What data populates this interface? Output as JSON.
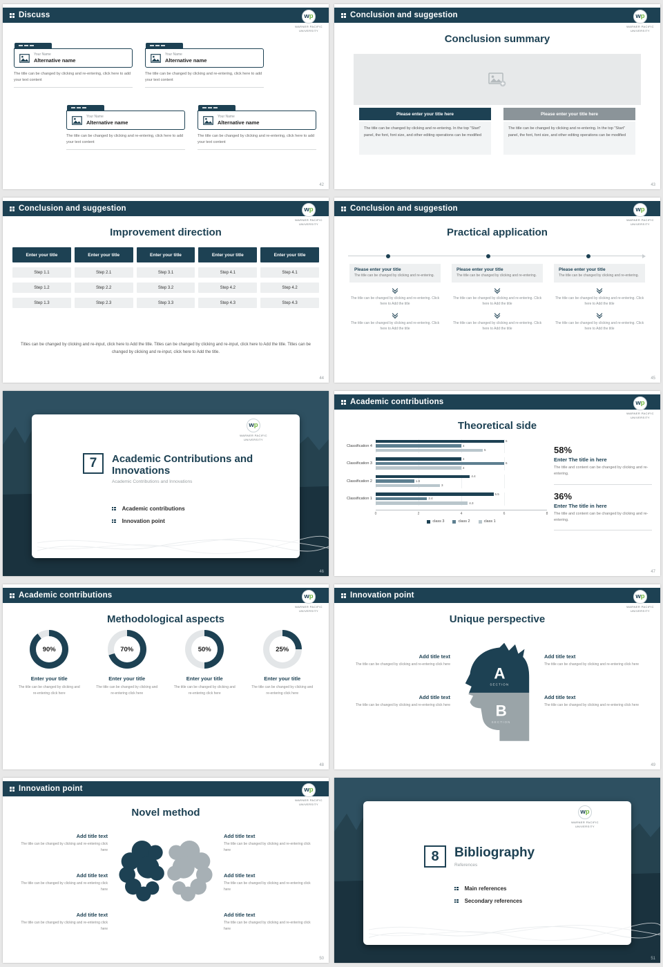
{
  "brand": {
    "logo_w": "w",
    "logo_p": "p",
    "caption": "WARNER PACIFIC UNIVERSITY",
    "accent_color": "#1d4153",
    "green_color": "#6fb53f"
  },
  "icons": {
    "header_bullet": "grid-dots-icon",
    "card_picture": "picture-icon",
    "image_placeholder": "picture-plus-icon",
    "flow": "double-chevron-down-icon",
    "timeline": "arrow-right-icon"
  },
  "slide42": {
    "header": "Discuss",
    "page": "42",
    "cards": [
      {
        "name": "Your Name",
        "alt": "Alternative name",
        "body": "The title can be changed by clicking and re-entering, click here to add your text content"
      },
      {
        "name": "Your Name",
        "alt": "Alternative name",
        "body": "The title can be changed by clicking and re-entering, click here to add your text content"
      },
      {
        "name": "Your Name",
        "alt": "Alternative name",
        "body": "The title can be changed by clicking and re-entering, click here to add your text content"
      },
      {
        "name": "Your Name",
        "alt": "Alternative name",
        "body": "The title can be changed by clicking and re-entering, click here to add your text content"
      }
    ]
  },
  "slide43": {
    "header": "Conclusion and suggestion",
    "page": "43",
    "title": "Conclusion summary",
    "columns": [
      {
        "button": "Please enter your title here",
        "body": "The title can be changed by clicking and re-entering. In the top \"Start\" panel, the font, font size, and other editing operations can be modified"
      },
      {
        "button": "Please enter your title here",
        "body": "The title can be changed by clicking and re-entering. In the top \"Start\" panel, the font, font size, and other editing operations can be modified"
      }
    ]
  },
  "slide44": {
    "header": "Conclusion and suggestion",
    "page": "44",
    "title": "Improvement direction",
    "columns": [
      {
        "button": "Enter your title",
        "steps": [
          "Step 1.1",
          "Step 1.2",
          "Step 1.3"
        ]
      },
      {
        "button": "Enter your title",
        "steps": [
          "Step 2.1",
          "Step 2.2",
          "Step 2.3"
        ]
      },
      {
        "button": "Enter your title",
        "steps": [
          "Step 3.1",
          "Step 3.2",
          "Step 3.3"
        ]
      },
      {
        "button": "Enter your title",
        "steps": [
          "Step 4.1",
          "Step 4.2",
          "Step 4.3"
        ]
      },
      {
        "button": "Enter your title",
        "steps": [
          "Step 4.1",
          "Step 4.2",
          "Step 4.3"
        ]
      }
    ],
    "footer": "Titles can be changed by clicking and re-input, click here to Add the title. Titles can be changed by clicking and re-input, click here to Add the title. Titles can be changed by clicking and re-input, click here to Add the title."
  },
  "slide45": {
    "header": "Conclusion and suggestion",
    "page": "45",
    "title": "Practical application",
    "columns": [
      {
        "box_title": "Please enter your title",
        "box_body": "The title can be changed by clicking and re-entering.",
        "mid": "The title can be changed by clicking and re-entering. Click here to Add the title",
        "bottom": "The title can be changed by clicking and re-entering. Click here to Add the title"
      },
      {
        "box_title": "Please enter your title",
        "box_body": "The title can be changed by clicking and re-entering.",
        "mid": "The title can be changed by clicking and re-entering. Click here to Add the title",
        "bottom": "The title can be changed by clicking and re-entering. Click here to Add the title"
      },
      {
        "box_title": "Please enter your title",
        "box_body": "The title can be changed by clicking and re-entering.",
        "mid": "The title can be changed by clicking and re-entering. Click here to Add the title",
        "bottom": "The title can be changed by clicking and re-entering. Click here to Add the title"
      }
    ]
  },
  "slide46": {
    "page": "46",
    "number": "7",
    "title": "Academic Contributions and Innovations",
    "subtitle": "Academic Contributions and Innovations",
    "items": [
      "Academic contributions",
      "Innovation point"
    ]
  },
  "slide47": {
    "header": "Academic contributions",
    "page": "47",
    "title": "Theoretical side",
    "series_colors": [
      "#b9c6cc",
      "#5d7f90",
      "#1d4153"
    ],
    "stats": [
      {
        "pct": "58%",
        "title": "Enter The title in here",
        "body": "The title and content can be changed by clicking and re-entering."
      },
      {
        "pct": "36%",
        "title": "Enter The title in here",
        "body": "The title and content can be changed by clicking and re-entering."
      }
    ]
  },
  "chart_data": {
    "type": "bar",
    "orientation": "horizontal",
    "title": "Theoretical side",
    "categories": [
      "Classification 1",
      "Classification 2",
      "Classification 3",
      "Classification 4"
    ],
    "series": [
      {
        "name": "class 1",
        "values": [
          4.3,
          3,
          4,
          5
        ]
      },
      {
        "name": "class 2",
        "values": [
          2.4,
          1.8,
          6,
          4
        ]
      },
      {
        "name": "class 3",
        "values": [
          5.5,
          4.4,
          4,
          6
        ]
      }
    ],
    "xlim": [
      0,
      8
    ],
    "xticks": [
      0,
      2,
      4,
      6,
      8
    ],
    "grid": true,
    "legend_position": "bottom",
    "legend_order": [
      "class 3",
      "class 2",
      "class 1"
    ]
  },
  "slide48": {
    "header": "Academic contributions",
    "page": "48",
    "title": "Methodological aspects",
    "donuts": [
      {
        "pct": 90,
        "label": "90%",
        "title": "Enter your title",
        "body": "The title can be changed by clicking and re-entering click here"
      },
      {
        "pct": 70,
        "label": "70%",
        "title": "Enter your title",
        "body": "The title can be changed by clicking and re-entering click here"
      },
      {
        "pct": 50,
        "label": "50%",
        "title": "Enter your title",
        "body": "The title can be changed by clicking and re-entering click here"
      },
      {
        "pct": 25,
        "label": "25%",
        "title": "Enter your title",
        "body": "The title can be changed by clicking and re-entering click here"
      }
    ]
  },
  "slide49": {
    "header": "Innovation point",
    "page": "49",
    "title": "Unique perspective",
    "sections": [
      {
        "letter": "A",
        "label": "SECTION"
      },
      {
        "letter": "B",
        "label": "SECTION"
      }
    ],
    "left_blocks": [
      {
        "title": "Add title text",
        "body": "The title can be changed by clicking and re-entering click here"
      },
      {
        "title": "Add title text",
        "body": "The title can be changed by clicking and re-entering click here"
      }
    ],
    "right_blocks": [
      {
        "title": "Add title text",
        "body": "The title can be changed by clicking and re-entering click here"
      },
      {
        "title": "Add title text",
        "body": "The title can be changed by clicking and re-entering click here"
      }
    ]
  },
  "slide50": {
    "header": "Innovation point",
    "page": "50",
    "title": "Novel method",
    "left_blocks": [
      {
        "title": "Add title text",
        "body": "The title can be changed by clicking and re-entering click here"
      },
      {
        "title": "Add title text",
        "body": "The title can be changed by clicking and re-entering click here"
      },
      {
        "title": "Add title text",
        "body": "The title can be changed by clicking and re-entering click here"
      }
    ],
    "right_blocks": [
      {
        "title": "Add title text",
        "body": "The title can be changed by clicking and re-entering click here"
      },
      {
        "title": "Add title text",
        "body": "The title can be changed by clicking and re-entering click here"
      },
      {
        "title": "Add title text",
        "body": "The title can be changed by clicking and re-entering click here"
      }
    ]
  },
  "slide51": {
    "page": "51",
    "number": "8",
    "title": "Bibliography",
    "subtitle": "References",
    "items": [
      "Main references",
      "Secondary references"
    ]
  }
}
